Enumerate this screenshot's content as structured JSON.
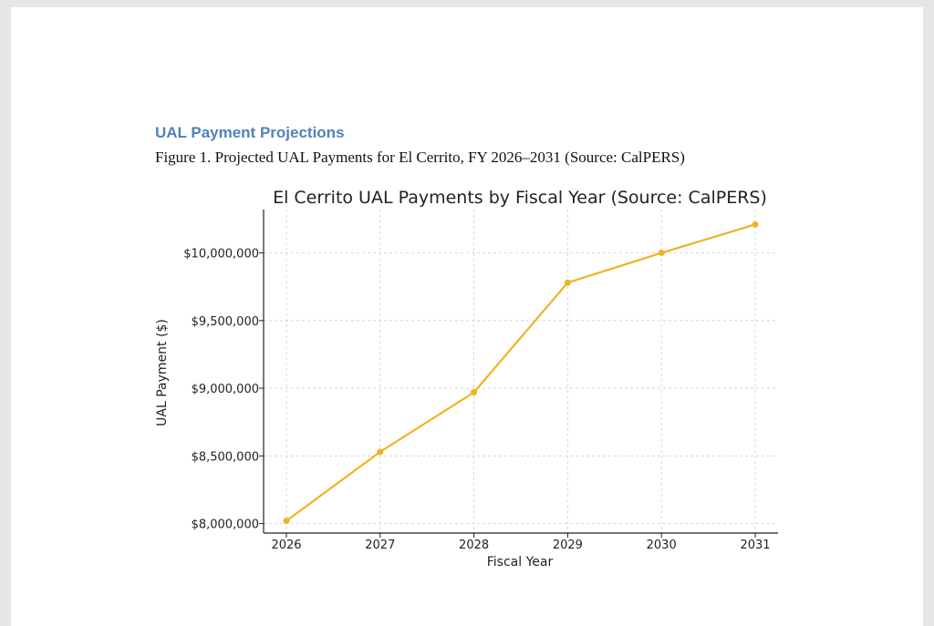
{
  "document": {
    "heading": "UAL Payment Projections",
    "caption": "Figure 1. Projected UAL Payments for El Cerrito, FY 2026–2031 (Source: CalPERS)"
  },
  "colors": {
    "heading": "#4f81bd",
    "line": "#f0b323"
  },
  "chart_data": {
    "type": "line",
    "title": "El Cerrito UAL Payments by Fiscal Year (Source: CalPERS)",
    "xlabel": "Fiscal Year",
    "ylabel": "UAL Payment ($)",
    "categories": [
      "2026",
      "2027",
      "2028",
      "2029",
      "2030",
      "2031"
    ],
    "series": [
      {
        "name": "UAL Payment",
        "values": [
          8020000,
          8530000,
          8970000,
          9780000,
          10000000,
          10210000
        ]
      }
    ],
    "yticks": [
      8000000,
      8500000,
      9000000,
      9500000,
      10000000
    ],
    "ytick_labels": [
      "$8,000,000",
      "$8,500,000",
      "$9,000,000",
      "$9,500,000",
      "$10,000,000"
    ],
    "ylim": [
      7930000,
      10320000
    ],
    "grid": true,
    "legend": "none"
  }
}
